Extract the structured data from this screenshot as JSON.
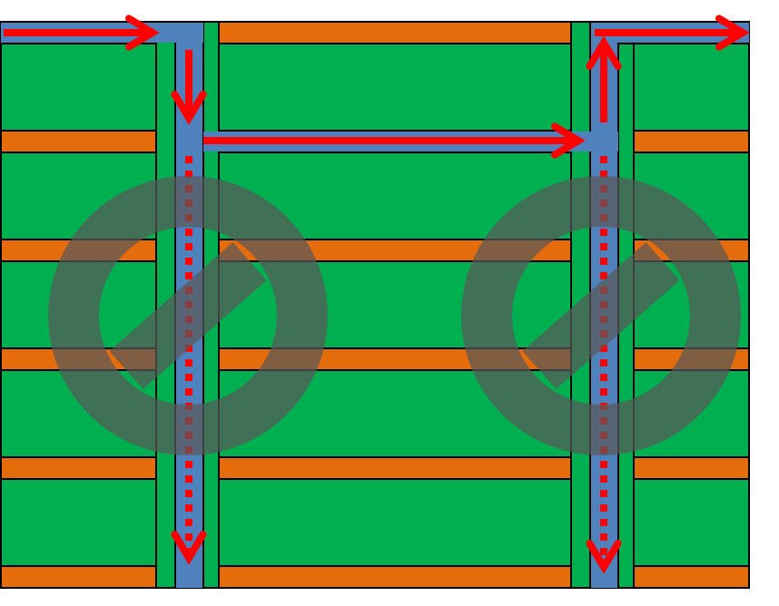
{
  "colors": {
    "cell": "#00b050",
    "strip": "#e46c0a",
    "channel": "#4f81bd",
    "arrow": "#ff0000",
    "prohibition": "#595959",
    "outline": "#000000"
  },
  "icons": {
    "flow_arrows": "arrow-icon",
    "dotted_flow": "dotted-arrow-icon",
    "prohibition": "no-entry-icon"
  },
  "prohibition_count": 2
}
